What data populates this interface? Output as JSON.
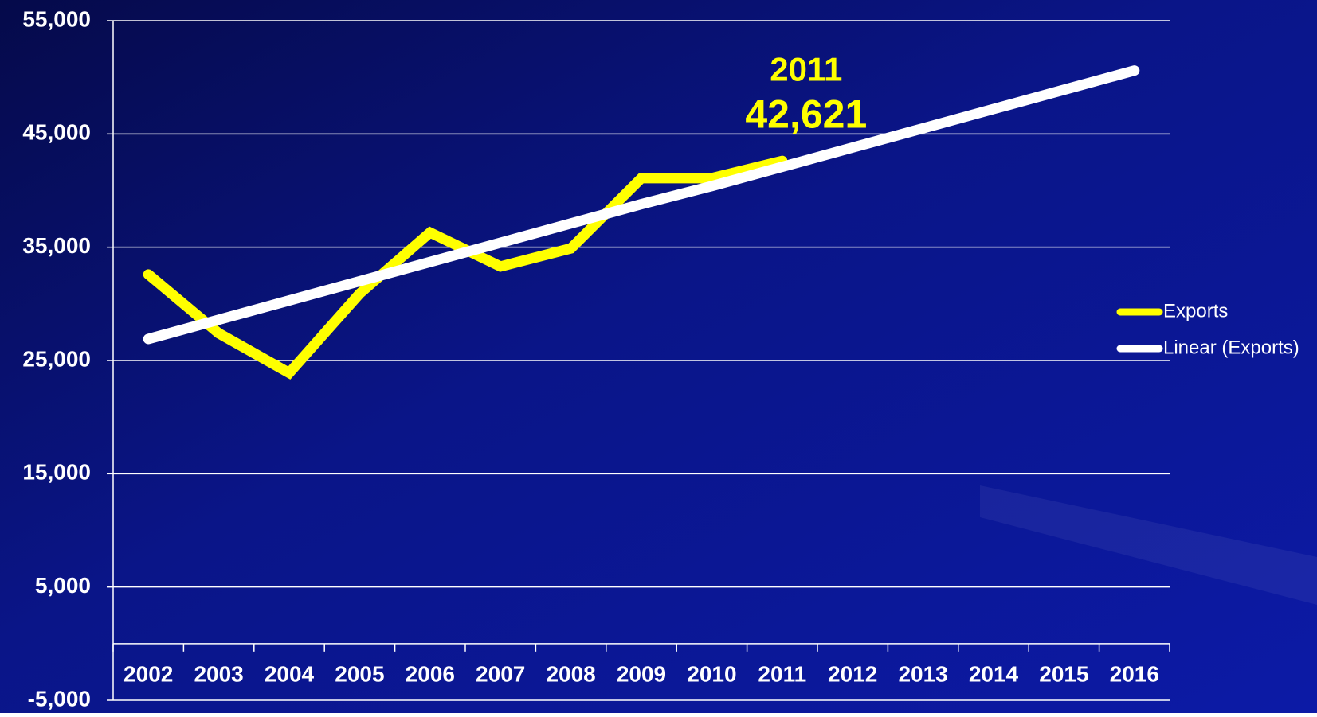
{
  "chart_data": {
    "type": "line",
    "categories": [
      "2002",
      "2003",
      "2004",
      "2005",
      "2006",
      "2007",
      "2008",
      "2009",
      "2010",
      "2011",
      "2012",
      "2013",
      "2014",
      "2015",
      "2016"
    ],
    "series": [
      {
        "name": "Exports",
        "color": "#ffff00",
        "values": [
          32600,
          27400,
          23900,
          30900,
          36300,
          33300,
          34900,
          41100,
          41100,
          42621,
          null,
          null,
          null,
          null,
          null
        ],
        "value_labels": [
          null,
          null,
          null,
          null,
          null,
          null,
          null,
          null,
          null,
          "42,621",
          null,
          null,
          null,
          null,
          null
        ]
      },
      {
        "name": "Linear (Exports)",
        "color": "#ffffff",
        "values": [
          26900,
          28600,
          30300,
          32000,
          33700,
          35400,
          37100,
          38800,
          40400,
          42100,
          43800,
          45500,
          47200,
          48900,
          50600
        ]
      }
    ],
    "ylim": [
      -5000,
      55000
    ],
    "yticks": [
      {
        "value": -5000,
        "label": "-5,000"
      },
      {
        "value": 5000,
        "label": "5,000"
      },
      {
        "value": 15000,
        "label": "15,000"
      },
      {
        "value": 25000,
        "label": "25,000"
      },
      {
        "value": 35000,
        "label": "35,000"
      },
      {
        "value": 45000,
        "label": "45,000"
      },
      {
        "value": 55000,
        "label": "55,000"
      }
    ],
    "grid": true,
    "legend": "right"
  }
}
